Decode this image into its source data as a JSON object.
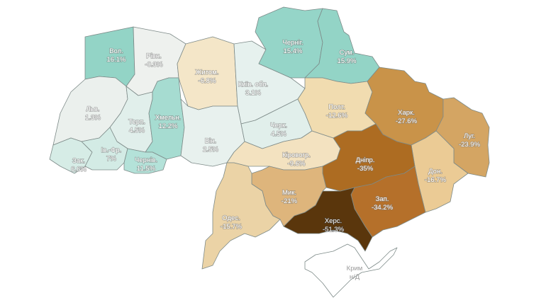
{
  "map": {
    "regions": [
      {
        "id": "vol",
        "name": "Вол.",
        "value": "16.1%",
        "color": "#93d4c6"
      },
      {
        "id": "rivn",
        "name": "Рівн.",
        "value": "-0.3%",
        "color": "#eef1ee"
      },
      {
        "id": "zhytom",
        "name": "Житом.",
        "value": "-6.8%",
        "color": "#f4e6c8"
      },
      {
        "id": "kyiv",
        "name": "Київ. обл.",
        "value": "3.1%",
        "color": "#e6f1ee"
      },
      {
        "id": "chernih",
        "name": "Черніг.",
        "value": "15.4%",
        "color": "#95d5c8"
      },
      {
        "id": "sum",
        "name": "Сум.",
        "value": "15.9%",
        "color": "#93d4c6"
      },
      {
        "id": "lviv",
        "name": "Льв.",
        "value": "1.3%",
        "color": "#ebf0ed"
      },
      {
        "id": "terp",
        "name": "Терп.",
        "value": "4.5%",
        "color": "#e1efeb"
      },
      {
        "id": "khmeln",
        "name": "Хмельн.",
        "value": "12.2%",
        "color": "#a6dcd1"
      },
      {
        "id": "vin",
        "name": "Він.",
        "value": "2.5%",
        "color": "#e8f1ee"
      },
      {
        "id": "cherk",
        "name": "Черк.",
        "value": "4.5%",
        "color": "#e1efeb"
      },
      {
        "id": "kirovohr",
        "name": "Кіровогр.",
        "value": "-9.6%",
        "color": "#f3e2c0"
      },
      {
        "id": "polt",
        "name": "Полт.",
        "value": "-12.6%",
        "color": "#f1dcb0"
      },
      {
        "id": "khark",
        "name": "Харк.",
        "value": "-27.6%",
        "color": "#c99349"
      },
      {
        "id": "luh",
        "name": "Луг.",
        "value": "-23.9%",
        "color": "#d4a563"
      },
      {
        "id": "don",
        "name": "Дон.",
        "value": "-16.7%",
        "color": "#ebcb95"
      },
      {
        "id": "dnipr",
        "name": "Дніпр.",
        "value": "-35%",
        "color": "#ad6c22"
      },
      {
        "id": "zap",
        "name": "Зап.",
        "value": "-34.2%",
        "color": "#b5702a"
      },
      {
        "id": "khers",
        "name": "Херс.",
        "value": "-51.3%",
        "color": "#5a360c"
      },
      {
        "id": "myk",
        "name": "Мик.",
        "value": "-21%",
        "color": "#deb57c"
      },
      {
        "id": "odes",
        "name": "Одес.",
        "value": "-15.7%",
        "color": "#ebd3a6"
      },
      {
        "id": "zak",
        "name": "Зак.",
        "value": "6.6%",
        "color": "#d6ece6"
      },
      {
        "id": "ivfr",
        "name": "Ів.-Фр.",
        "value": "7%",
        "color": "#d3ebe5"
      },
      {
        "id": "cherniv",
        "name": "Чернів.",
        "value": "11.5%",
        "color": "#b4e2d9"
      },
      {
        "id": "krym",
        "name": "Крим",
        "value": "н/Д",
        "color": "#ffffff"
      }
    ]
  }
}
